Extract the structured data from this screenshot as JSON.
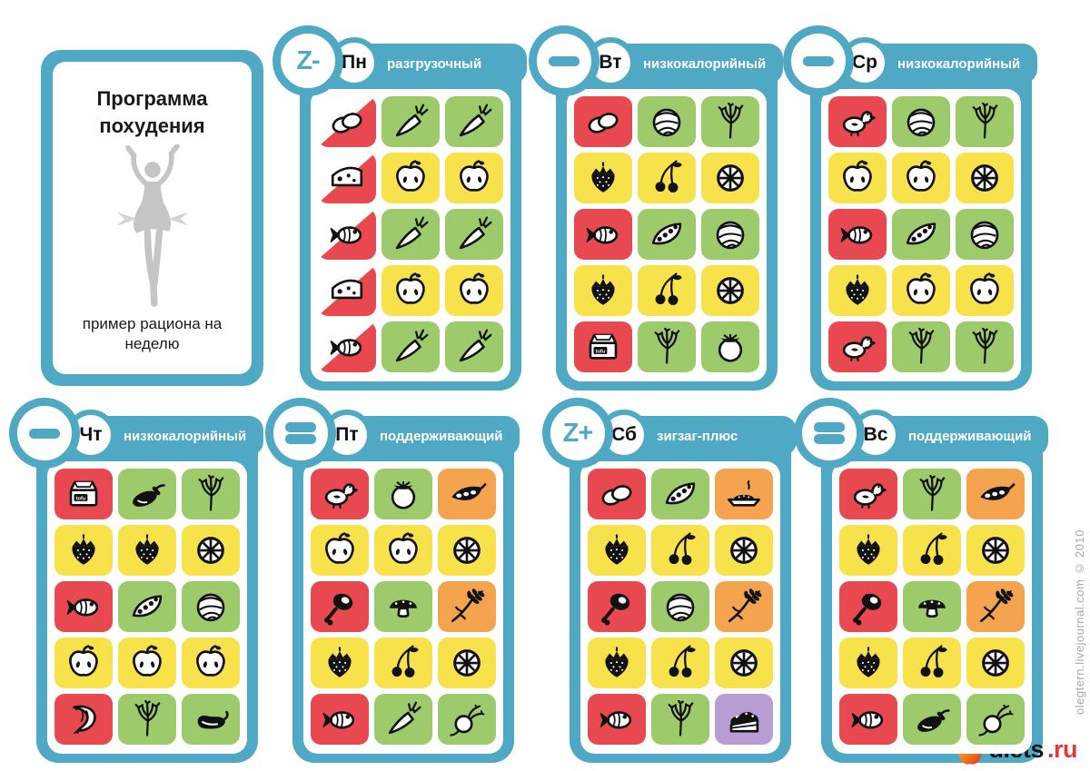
{
  "colors": {
    "teal": "#4FA8C4",
    "tile": {
      "red": "#E8484F",
      "green": "#9DCB6B",
      "yellow": "#F7E24C",
      "orange": "#F4A44E",
      "purple": "#B89CD4"
    },
    "silhouette_gray": "#C5C5C5",
    "credit_gray": "#A8A8A8",
    "logo_red": "#E23A3A"
  },
  "intro_card": {
    "title": "Программа похудения",
    "subtitle": "пример рациона на неделю",
    "silhouette_icon": "slimming-woman-silhouette"
  },
  "icon_labels": {
    "tofu": "tofu"
  },
  "cards": [
    {
      "id": "mon",
      "day": "Пн",
      "symbol": "Z-",
      "type": "разгрузочный",
      "tiles": [
        {
          "icon": "eggs",
          "bg": "red_half"
        },
        {
          "icon": "carrot",
          "bg": "green"
        },
        {
          "icon": "carrot",
          "bg": "green"
        },
        {
          "icon": "cheese",
          "bg": "red_half"
        },
        {
          "icon": "apple",
          "bg": "yellow"
        },
        {
          "icon": "apple",
          "bg": "yellow"
        },
        {
          "icon": "fish",
          "bg": "red_half"
        },
        {
          "icon": "carrot",
          "bg": "green"
        },
        {
          "icon": "carrot",
          "bg": "green"
        },
        {
          "icon": "cheese",
          "bg": "red_half"
        },
        {
          "icon": "apple",
          "bg": "yellow"
        },
        {
          "icon": "apple",
          "bg": "yellow"
        },
        {
          "icon": "fish",
          "bg": "red_half"
        },
        {
          "icon": "carrot",
          "bg": "green"
        },
        {
          "icon": "carrot",
          "bg": "green"
        }
      ]
    },
    {
      "id": "tue",
      "day": "Вт",
      "symbol": "-",
      "type": "низкокалорийный",
      "tiles": [
        {
          "icon": "eggs",
          "bg": "red"
        },
        {
          "icon": "cabbage",
          "bg": "green"
        },
        {
          "icon": "dill",
          "bg": "green"
        },
        {
          "icon": "strawberry",
          "bg": "yellow"
        },
        {
          "icon": "cherries",
          "bg": "yellow"
        },
        {
          "icon": "citrus",
          "bg": "yellow"
        },
        {
          "icon": "fish",
          "bg": "red"
        },
        {
          "icon": "peas",
          "bg": "green"
        },
        {
          "icon": "cabbage",
          "bg": "green"
        },
        {
          "icon": "strawberry",
          "bg": "yellow"
        },
        {
          "icon": "cherries",
          "bg": "yellow"
        },
        {
          "icon": "citrus",
          "bg": "yellow"
        },
        {
          "icon": "tofu",
          "bg": "red"
        },
        {
          "icon": "dill",
          "bg": "green"
        },
        {
          "icon": "tomato",
          "bg": "green"
        }
      ]
    },
    {
      "id": "wed",
      "day": "Ср",
      "symbol": "-",
      "type": "низкокалорийный",
      "tiles": [
        {
          "icon": "chicken",
          "bg": "red"
        },
        {
          "icon": "cabbage",
          "bg": "green"
        },
        {
          "icon": "dill",
          "bg": "green"
        },
        {
          "icon": "apple",
          "bg": "yellow"
        },
        {
          "icon": "apple",
          "bg": "yellow"
        },
        {
          "icon": "citrus",
          "bg": "yellow"
        },
        {
          "icon": "fish",
          "bg": "red"
        },
        {
          "icon": "peas",
          "bg": "green"
        },
        {
          "icon": "cabbage",
          "bg": "green"
        },
        {
          "icon": "strawberry",
          "bg": "yellow"
        },
        {
          "icon": "apple",
          "bg": "yellow"
        },
        {
          "icon": "apple",
          "bg": "yellow"
        },
        {
          "icon": "chicken",
          "bg": "red"
        },
        {
          "icon": "dill",
          "bg": "green"
        },
        {
          "icon": "dill",
          "bg": "green"
        }
      ]
    },
    {
      "id": "thu",
      "day": "Чт",
      "symbol": "-",
      "type": "низкокалорийный",
      "tiles": [
        {
          "icon": "tofu",
          "bg": "red"
        },
        {
          "icon": "eggplant",
          "bg": "green"
        },
        {
          "icon": "dill",
          "bg": "green"
        },
        {
          "icon": "strawberry",
          "bg": "yellow"
        },
        {
          "icon": "strawberry",
          "bg": "yellow"
        },
        {
          "icon": "citrus",
          "bg": "yellow"
        },
        {
          "icon": "fish",
          "bg": "red"
        },
        {
          "icon": "peas",
          "bg": "green"
        },
        {
          "icon": "cabbage",
          "bg": "green"
        },
        {
          "icon": "apple",
          "bg": "yellow"
        },
        {
          "icon": "apple",
          "bg": "yellow"
        },
        {
          "icon": "apple",
          "bg": "yellow"
        },
        {
          "icon": "shrimp",
          "bg": "red"
        },
        {
          "icon": "dill",
          "bg": "green"
        },
        {
          "icon": "pepper",
          "bg": "green"
        }
      ]
    },
    {
      "id": "fri",
      "day": "Пт",
      "symbol": "=",
      "type": "поддерживающий",
      "tiles": [
        {
          "icon": "chicken",
          "bg": "red"
        },
        {
          "icon": "tomato",
          "bg": "green"
        },
        {
          "icon": "beans",
          "bg": "orange"
        },
        {
          "icon": "apple",
          "bg": "yellow"
        },
        {
          "icon": "apple",
          "bg": "yellow"
        },
        {
          "icon": "citrus",
          "bg": "yellow"
        },
        {
          "icon": "meat",
          "bg": "red"
        },
        {
          "icon": "mushroom",
          "bg": "green"
        },
        {
          "icon": "wheat",
          "bg": "orange"
        },
        {
          "icon": "strawberry",
          "bg": "yellow"
        },
        {
          "icon": "cherries",
          "bg": "yellow"
        },
        {
          "icon": "citrus",
          "bg": "yellow"
        },
        {
          "icon": "fish",
          "bg": "red"
        },
        {
          "icon": "carrot",
          "bg": "green"
        },
        {
          "icon": "radish",
          "bg": "green"
        }
      ]
    },
    {
      "id": "sat",
      "day": "Сб",
      "symbol": "Z+",
      "type": "зигзаг-плюс",
      "tiles": [
        {
          "icon": "eggs",
          "bg": "red"
        },
        {
          "icon": "peas",
          "bg": "green"
        },
        {
          "icon": "porridge",
          "bg": "orange"
        },
        {
          "icon": "strawberry",
          "bg": "yellow"
        },
        {
          "icon": "cherries",
          "bg": "yellow"
        },
        {
          "icon": "citrus",
          "bg": "yellow"
        },
        {
          "icon": "meat",
          "bg": "red"
        },
        {
          "icon": "cabbage",
          "bg": "green"
        },
        {
          "icon": "wheat",
          "bg": "orange"
        },
        {
          "icon": "strawberry",
          "bg": "yellow"
        },
        {
          "icon": "cherries",
          "bg": "yellow"
        },
        {
          "icon": "citrus",
          "bg": "yellow"
        },
        {
          "icon": "fish",
          "bg": "red"
        },
        {
          "icon": "dill",
          "bg": "green"
        },
        {
          "icon": "cake",
          "bg": "purple"
        }
      ]
    },
    {
      "id": "sun",
      "day": "Вс",
      "symbol": "=",
      "type": "поддерживающий",
      "tiles": [
        {
          "icon": "chicken",
          "bg": "red"
        },
        {
          "icon": "dill",
          "bg": "green"
        },
        {
          "icon": "beans",
          "bg": "orange"
        },
        {
          "icon": "strawberry",
          "bg": "yellow"
        },
        {
          "icon": "cherries",
          "bg": "yellow"
        },
        {
          "icon": "citrus",
          "bg": "yellow"
        },
        {
          "icon": "meat",
          "bg": "red"
        },
        {
          "icon": "mushroom",
          "bg": "green"
        },
        {
          "icon": "wheat",
          "bg": "orange"
        },
        {
          "icon": "strawberry",
          "bg": "yellow"
        },
        {
          "icon": "cherries",
          "bg": "yellow"
        },
        {
          "icon": "citrus",
          "bg": "yellow"
        },
        {
          "icon": "fish",
          "bg": "red"
        },
        {
          "icon": "eggplant",
          "bg": "green"
        },
        {
          "icon": "radish",
          "bg": "green"
        }
      ]
    }
  ],
  "footer": {
    "credit": "olegtern.livejournal.com © 2010",
    "logo": {
      "icon": "apple-logo",
      "text": "diets",
      "suffix": ".ru"
    }
  }
}
